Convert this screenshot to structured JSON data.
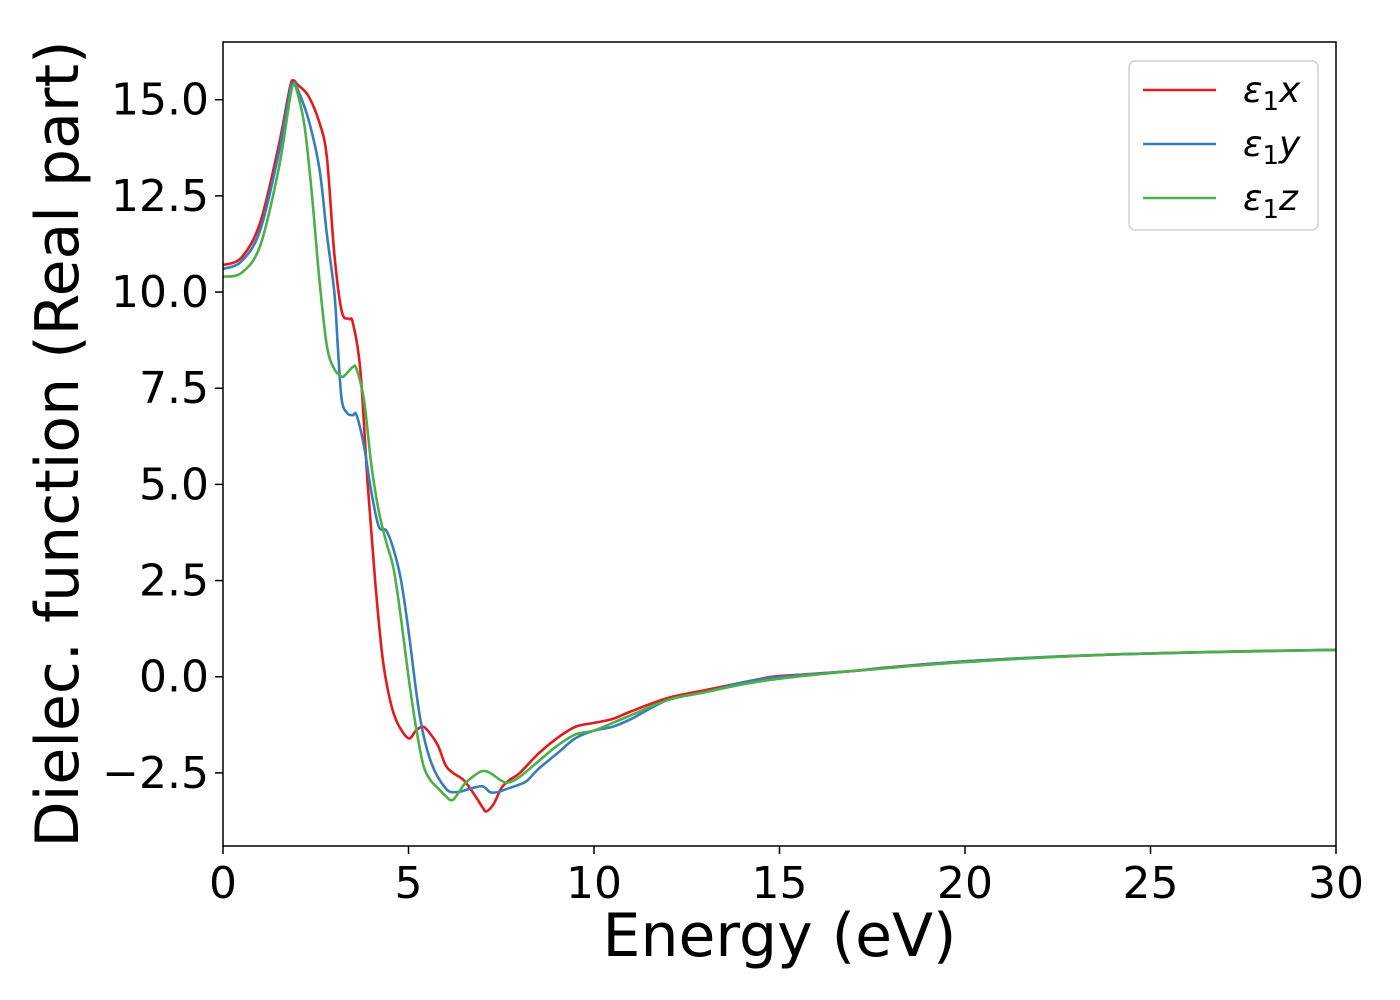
{
  "chart_data": {
    "type": "line",
    "title": "",
    "xlabel": "Energy (eV)",
    "ylabel": "Dielec. function (Real part)",
    "xlim": [
      0,
      30
    ],
    "ylim": [
      -4.4,
      16.5
    ],
    "xticks": [
      0,
      5,
      10,
      15,
      20,
      25,
      30
    ],
    "xtick_labels": [
      "0",
      "5",
      "10",
      "15",
      "20",
      "25",
      "30"
    ],
    "yticks": [
      -2.5,
      0.0,
      2.5,
      5.0,
      7.5,
      10.0,
      12.5,
      15.0
    ],
    "ytick_labels": [
      "−2.5",
      "0.0",
      "2.5",
      "5.0",
      "7.5",
      "10.0",
      "12.5",
      "15.0"
    ],
    "grid": false,
    "legend_position": "top-right",
    "series": [
      {
        "name": "ε1x",
        "legend": {
          "symbol": "ε",
          "sub": "1",
          "var": "x"
        },
        "color": "#e41a1c",
        "x": [
          0,
          0.5,
          1.0,
          1.5,
          1.8,
          1.9,
          2.0,
          2.3,
          2.6,
          2.8,
          3.0,
          3.2,
          3.4,
          3.5,
          3.7,
          3.9,
          4.1,
          4.3,
          4.5,
          4.7,
          5.0,
          5.2,
          5.4,
          5.6,
          5.8,
          6.0,
          6.2,
          6.5,
          6.8,
          7.0,
          7.1,
          7.3,
          7.5,
          7.7,
          8.0,
          8.5,
          9.0,
          9.5,
          10.0,
          10.5,
          11.0,
          12.0,
          13.0,
          14.0,
          14.8,
          15.5,
          17.0,
          18.0,
          20.0,
          22.0,
          24.0,
          26.0,
          28.0,
          30.0
        ],
        "y": [
          10.7,
          10.9,
          11.8,
          13.8,
          15.3,
          15.5,
          15.4,
          15.1,
          14.4,
          13.5,
          11.0,
          9.5,
          9.3,
          9.2,
          8.0,
          5.0,
          2.5,
          0.5,
          -0.6,
          -1.2,
          -1.6,
          -1.4,
          -1.3,
          -1.5,
          -1.8,
          -2.3,
          -2.5,
          -2.7,
          -3.1,
          -3.4,
          -3.5,
          -3.3,
          -2.9,
          -2.7,
          -2.5,
          -2.0,
          -1.6,
          -1.3,
          -1.2,
          -1.1,
          -0.9,
          -0.55,
          -0.35,
          -0.15,
          0.0,
          0.05,
          0.15,
          0.25,
          0.4,
          0.5,
          0.58,
          0.63,
          0.67,
          0.7
        ]
      },
      {
        "name": "ε1y",
        "legend": {
          "symbol": "ε",
          "sub": "1",
          "var": "y"
        },
        "color": "#377eb8",
        "x": [
          0,
          0.5,
          1.0,
          1.5,
          1.8,
          1.9,
          2.0,
          2.3,
          2.6,
          2.8,
          3.0,
          3.1,
          3.2,
          3.35,
          3.5,
          3.6,
          3.8,
          4.0,
          4.2,
          4.4,
          4.6,
          4.8,
          5.0,
          5.3,
          5.6,
          6.0,
          6.3,
          6.7,
          7.0,
          7.2,
          7.4,
          7.7,
          8.0,
          8.2,
          8.5,
          9.0,
          9.5,
          10.0,
          10.5,
          11.0,
          12.0,
          13.0,
          14.0,
          15.0,
          17.0,
          20.0,
          24.0,
          30.0
        ],
        "y": [
          10.6,
          10.8,
          11.6,
          13.6,
          15.2,
          15.45,
          15.3,
          14.5,
          13.2,
          11.5,
          10.0,
          8.5,
          7.2,
          6.85,
          6.8,
          6.8,
          6.0,
          4.8,
          3.9,
          3.8,
          3.3,
          2.5,
          1.2,
          -1.0,
          -2.2,
          -2.9,
          -3.0,
          -2.9,
          -2.85,
          -3.0,
          -3.0,
          -2.9,
          -2.8,
          -2.7,
          -2.4,
          -2.0,
          -1.6,
          -1.4,
          -1.3,
          -1.1,
          -0.6,
          -0.4,
          -0.15,
          0.0,
          0.15,
          0.4,
          0.58,
          0.7
        ]
      },
      {
        "name": "ε1z",
        "legend": {
          "symbol": "ε",
          "sub": "1",
          "var": "z"
        },
        "color": "#4daf4a",
        "x": [
          0,
          0.5,
          1.0,
          1.5,
          1.8,
          1.9,
          2.0,
          2.2,
          2.4,
          2.6,
          2.8,
          3.0,
          3.2,
          3.3,
          3.5,
          3.6,
          3.8,
          4.0,
          4.2,
          4.4,
          4.6,
          4.8,
          5.0,
          5.2,
          5.4,
          5.6,
          5.8,
          6.0,
          6.2,
          6.5,
          6.8,
          7.0,
          7.2,
          7.5,
          7.7,
          8.0,
          8.5,
          9.0,
          9.5,
          10.0,
          10.5,
          11.0,
          12.0,
          13.0,
          14.0,
          15.0,
          17.0,
          20.0,
          24.0,
          30.0
        ],
        "y": [
          10.4,
          10.5,
          11.2,
          13.2,
          15.0,
          15.4,
          15.2,
          14.3,
          12.5,
          10.3,
          8.6,
          8.0,
          7.8,
          7.85,
          8.05,
          8.0,
          7.2,
          5.5,
          4.3,
          3.5,
          2.8,
          1.5,
          0.0,
          -1.3,
          -2.3,
          -2.7,
          -2.9,
          -3.1,
          -3.2,
          -2.8,
          -2.55,
          -2.45,
          -2.5,
          -2.7,
          -2.75,
          -2.6,
          -2.2,
          -1.8,
          -1.5,
          -1.4,
          -1.2,
          -1.0,
          -0.6,
          -0.4,
          -0.2,
          -0.05,
          0.15,
          0.38,
          0.58,
          0.7
        ]
      }
    ]
  }
}
